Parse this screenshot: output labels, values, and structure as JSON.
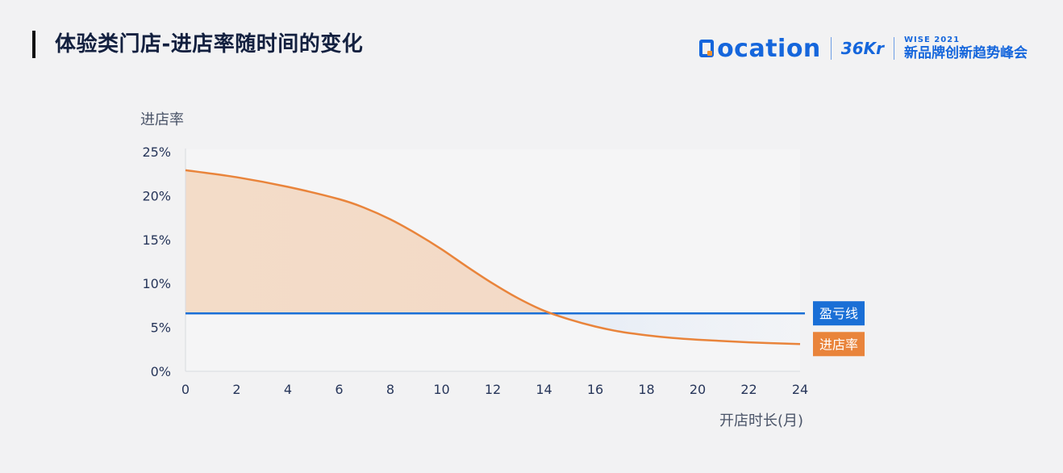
{
  "header": {
    "title": "体验类门店-进店率随时间的变化"
  },
  "brand": {
    "location": "ocation",
    "kr": "36Kr",
    "wise_top": "WISE 2021",
    "wise_bottom": "新品牌创新趋势峰会"
  },
  "chart_data": {
    "type": "line",
    "ylabel": "进店率",
    "xlabel": "开店时长(月)",
    "xlim": [
      0,
      24
    ],
    "ylim": [
      0,
      25
    ],
    "x_ticks": [
      0,
      2,
      4,
      6,
      8,
      10,
      12,
      14,
      16,
      18,
      20,
      22,
      24
    ],
    "y_ticks": [
      "0%",
      "5%",
      "10%",
      "15%",
      "20%",
      "25%"
    ],
    "y_tick_values": [
      0,
      5,
      10,
      15,
      20,
      25
    ],
    "series": [
      {
        "name": "进店率",
        "color": "#e9843b",
        "x": [
          0,
          2,
          4,
          6,
          7,
          8,
          9,
          10,
          11,
          12,
          13,
          14,
          15,
          16,
          17,
          18,
          19,
          20,
          22,
          24
        ],
        "y": [
          22.9,
          22.1,
          21.0,
          19.6,
          18.6,
          17.3,
          15.7,
          13.9,
          11.9,
          10.0,
          8.3,
          6.9,
          5.9,
          5.1,
          4.5,
          4.1,
          3.8,
          3.6,
          3.3,
          3.1
        ]
      },
      {
        "name": "盈亏线",
        "color": "#1a6fd6",
        "x": [
          0,
          24
        ],
        "y": [
          6.6,
          6.6
        ]
      }
    ],
    "legend_tags": [
      {
        "label": "盈亏线",
        "color": "#1a6fd6"
      },
      {
        "label": "进店率",
        "color": "#e9843b"
      }
    ]
  }
}
